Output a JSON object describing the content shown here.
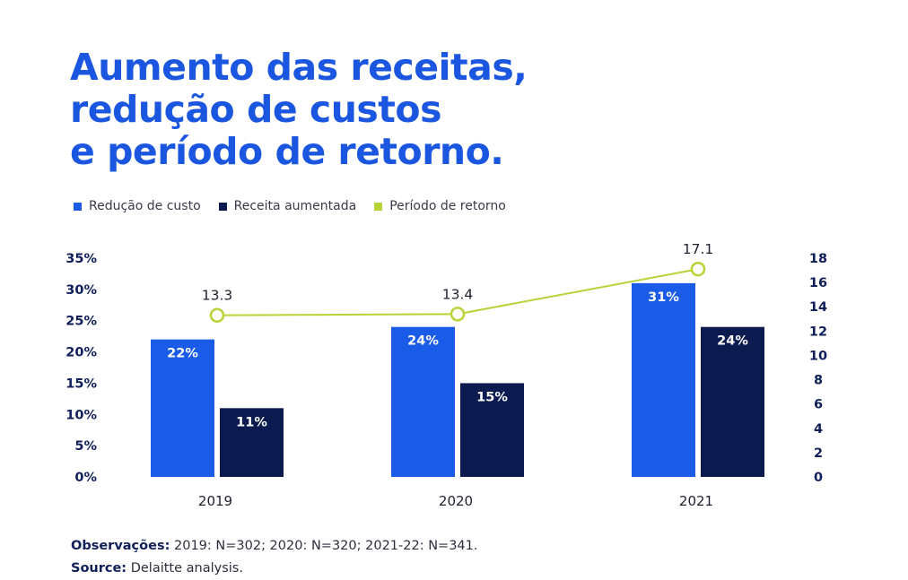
{
  "title_lines": [
    "Aumento das receitas,",
    "redução de custos",
    "e período de retorno."
  ],
  "colors": {
    "title": "#1a56e0",
    "reducao": "#1a5be8",
    "receita": "#0b1a4f",
    "periodo": "#b6d435"
  },
  "legend": [
    {
      "label": "Redução de custo",
      "color": "#1a5be8"
    },
    {
      "label": "Receita aumentada",
      "color": "#0b1a4f"
    },
    {
      "label": "Período de retorno",
      "color": "#b6d435"
    }
  ],
  "chart_data": {
    "type": "bar",
    "categories": [
      "2019",
      "2020",
      "2021"
    ],
    "series": [
      {
        "name": "Redução de custo",
        "values": [
          22,
          24,
          31
        ],
        "labels": [
          "22%",
          "24%",
          "31%"
        ],
        "axis": "left"
      },
      {
        "name": "Receita aumentada",
        "values": [
          11,
          15,
          24
        ],
        "labels": [
          "11%",
          "15%",
          "24%"
        ],
        "axis": "left"
      }
    ],
    "line_series": {
      "name": "Período de retorno",
      "values": [
        13.3,
        13.4,
        17.1
      ],
      "labels": [
        "13.3",
        "13.4",
        "17.1"
      ],
      "axis": "right"
    },
    "y_left": {
      "min": 0,
      "max": 35,
      "ticks": [
        "0%",
        "5%",
        "10%",
        "15%",
        "20%",
        "25%",
        "30%",
        "35%"
      ]
    },
    "y_right": {
      "min": 0,
      "max": 18,
      "ticks": [
        "0",
        "2",
        "4",
        "6",
        "8",
        "10",
        "12",
        "14",
        "16",
        "18"
      ]
    }
  },
  "notes": {
    "obs_label": "Observações:",
    "obs_text": " 2019: N=302; 2020: N=320; 2021-22: N=341.",
    "source_label": "Source:",
    "source_text": " Delaitte analysis."
  }
}
